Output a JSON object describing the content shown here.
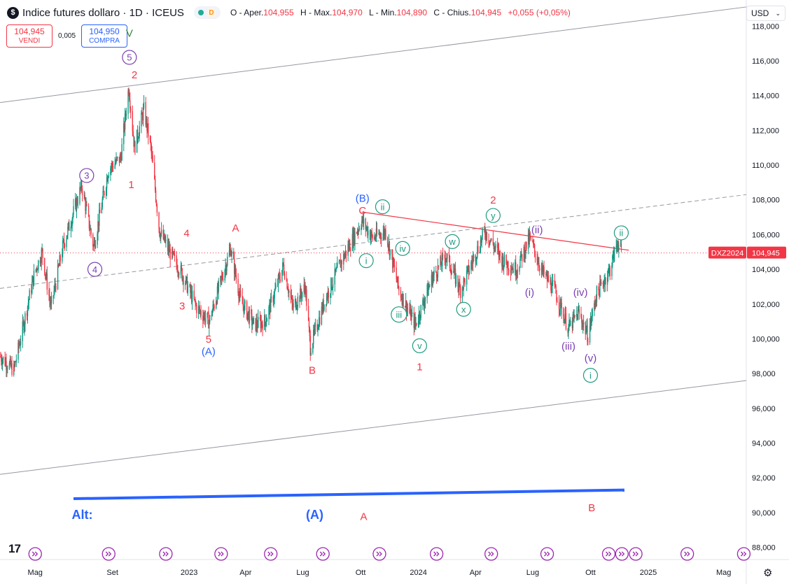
{
  "header": {
    "logo_glyph": "$",
    "title": "Indice futures dollaro · 1D · ICEUS",
    "badge_letter": "D",
    "ohlc": [
      {
        "label": "O - Aper.",
        "value": "104,955"
      },
      {
        "label": "H - Max.",
        "value": "104,970"
      },
      {
        "label": "L - Min.",
        "value": "104,890"
      },
      {
        "label": "C - Chius.",
        "value": "104,945"
      }
    ],
    "change": "+0,055 (+0,05%)"
  },
  "trade": {
    "sell_price": "104,945",
    "sell_label": "VENDI",
    "spread": "0,005",
    "buy_price": "104,950",
    "buy_label": "COMPRA"
  },
  "currency_select": {
    "value": "USD",
    "icon": "chevron-down-icon"
  },
  "colors": {
    "up": "#089981",
    "down": "#f23645",
    "blue": "#2962ff",
    "purple": "#7b3fb3",
    "teal": "#1e9b7f",
    "green": "#3b8a3e"
  },
  "chart_data": {
    "type": "candlestick",
    "symbol_tag": "DXZ2024",
    "last_price": "104,945",
    "y_ticks": [
      "118,000",
      "116,000",
      "114,000",
      "112,000",
      "110,000",
      "108,000",
      "106,000",
      "104,000",
      "102,000",
      "100,000",
      "98,000",
      "96,000",
      "94,000",
      "92,000",
      "90,000",
      "88,000"
    ],
    "y_range": [
      87.3,
      119.5
    ],
    "x_ticks": [
      "Mag",
      "Set",
      "2023",
      "Apr",
      "Lug",
      "Ott",
      "2024",
      "Apr",
      "Lug",
      "Ott",
      "2025",
      "Mag"
    ],
    "x_tick_dates": [
      "2022-05-01",
      "2022-09-01",
      "2023-01-01",
      "2023-04-01",
      "2023-07-01",
      "2023-10-01",
      "2024-01-01",
      "2024-04-01",
      "2024-07-01",
      "2024-10-01",
      "2025-01-01",
      "2025-05-01"
    ],
    "x_range": [
      "2022-03-06",
      "2025-06-06"
    ],
    "price_path": [
      [
        "2022-03-06",
        99.0
      ],
      [
        "2022-03-28",
        98.2
      ],
      [
        "2022-04-30",
        103.8
      ],
      [
        "2022-05-12",
        105.0
      ],
      [
        "2022-05-26",
        101.8
      ],
      [
        "2022-06-14",
        105.3
      ],
      [
        "2022-07-14",
        108.8
      ],
      [
        "2022-08-02",
        105.3
      ],
      [
        "2022-08-26",
        109.8
      ],
      [
        "2022-09-14",
        110.4
      ],
      [
        "2022-09-27",
        114.5
      ],
      [
        "2022-10-06",
        111.0
      ],
      [
        "2022-10-21",
        113.2
      ],
      [
        "2022-11-01",
        111.0
      ],
      [
        "2022-11-15",
        106.2
      ],
      [
        "2022-12-01",
        105.0
      ],
      [
        "2022-12-20",
        103.8
      ],
      [
        "2023-01-13",
        101.8
      ],
      [
        "2023-02-02",
        101.0
      ],
      [
        "2023-03-08",
        105.2
      ],
      [
        "2023-03-24",
        102.2
      ],
      [
        "2023-04-14",
        100.8
      ],
      [
        "2023-05-02",
        101.0
      ],
      [
        "2023-05-31",
        104.2
      ],
      [
        "2023-06-15",
        101.8
      ],
      [
        "2023-07-05",
        103.0
      ],
      [
        "2023-07-13",
        99.5
      ],
      [
        "2023-08-05",
        102.2
      ],
      [
        "2023-08-28",
        104.2
      ],
      [
        "2023-10-03",
        106.8
      ],
      [
        "2023-10-20",
        105.8
      ],
      [
        "2023-11-10",
        106.2
      ],
      [
        "2023-12-01",
        102.8
      ],
      [
        "2023-12-27",
        100.8
      ],
      [
        "2024-01-23",
        103.5
      ],
      [
        "2024-02-14",
        104.8
      ],
      [
        "2024-03-08",
        102.8
      ],
      [
        "2024-04-16",
        106.2
      ],
      [
        "2024-05-14",
        104.5
      ],
      [
        "2024-06-05",
        104.0
      ],
      [
        "2024-06-26",
        105.8
      ],
      [
        "2024-07-17",
        103.8
      ],
      [
        "2024-08-05",
        102.8
      ],
      [
        "2024-08-27",
        100.6
      ],
      [
        "2024-09-12",
        101.5
      ],
      [
        "2024-09-27",
        100.2
      ],
      [
        "2024-10-10",
        102.5
      ],
      [
        "2024-11-01",
        104.0
      ],
      [
        "2024-11-13",
        105.6
      ],
      [
        "2024-11-19",
        104.945
      ]
    ],
    "lines": [
      {
        "kind": "channel-upper",
        "from": [
          "2022-03-06",
          113.6
        ],
        "to": [
          "2025-06-06",
          119.1
        ],
        "color": "#9598a1"
      },
      {
        "kind": "channel-lower",
        "from": [
          "2022-03-06",
          92.2
        ],
        "to": [
          "2025-06-06",
          97.6
        ],
        "color": "#9598a1"
      },
      {
        "kind": "channel-mid-dashed",
        "from": [
          "2022-03-06",
          102.9
        ],
        "to": [
          "2025-06-06",
          108.3
        ],
        "color": "#9598a1"
      },
      {
        "kind": "resistance",
        "from": [
          "2023-10-03",
          107.3
        ],
        "to": [
          "2024-12-01",
          105.1
        ],
        "color": "#f23645"
      },
      {
        "kind": "alt-baseline",
        "from": [
          "2022-07-01",
          90.8
        ],
        "to": [
          "2024-11-24",
          91.3
        ],
        "color": "#2962ff"
      },
      {
        "kind": "last-price",
        "value": 104.945,
        "color": "#f23645"
      }
    ],
    "annotations": [
      {
        "text": "V",
        "date": "2022-09-28",
        "price": 117.6,
        "color": "green",
        "circled": false
      },
      {
        "text": "5",
        "date": "2022-09-28",
        "price": 116.2,
        "color": "purple",
        "circled": true
      },
      {
        "text": "2",
        "date": "2022-10-06",
        "price": 115.2,
        "color": "down",
        "circled": false
      },
      {
        "text": "3",
        "date": "2022-07-22",
        "price": 109.4,
        "color": "purple",
        "circled": true
      },
      {
        "text": "1",
        "date": "2022-10-01",
        "price": 108.9,
        "color": "down",
        "circled": false
      },
      {
        "text": "4",
        "date": "2022-08-04",
        "price": 104.0,
        "color": "purple",
        "circled": true
      },
      {
        "text": "4",
        "date": "2022-12-28",
        "price": 106.1,
        "color": "down",
        "circled": false
      },
      {
        "text": "A",
        "date": "2023-03-16",
        "price": 106.4,
        "color": "down",
        "circled": false
      },
      {
        "text": "3",
        "date": "2022-12-21",
        "price": 101.9,
        "color": "down",
        "circled": false
      },
      {
        "text": "5",
        "date": "2023-02-01",
        "price": 100.0,
        "color": "down",
        "circled": false
      },
      {
        "text": "(A)",
        "date": "2023-02-01",
        "price": 99.3,
        "color": "blue",
        "circled": false
      },
      {
        "text": "B",
        "date": "2023-07-16",
        "price": 98.2,
        "color": "down",
        "circled": false
      },
      {
        "text": "(B)",
        "date": "2023-10-04",
        "price": 108.1,
        "color": "blue",
        "circled": false
      },
      {
        "text": "C",
        "date": "2023-10-04",
        "price": 107.4,
        "color": "down",
        "circled": false
      },
      {
        "text": "ii",
        "date": "2023-11-05",
        "price": 107.6,
        "color": "teal",
        "circled": true
      },
      {
        "text": "i",
        "date": "2023-10-10",
        "price": 104.5,
        "color": "teal",
        "circled": true
      },
      {
        "text": "iv",
        "date": "2023-12-07",
        "price": 105.2,
        "color": "teal",
        "circled": true
      },
      {
        "text": "w",
        "date": "2024-02-24",
        "price": 105.6,
        "color": "teal",
        "circled": true
      },
      {
        "text": "iii",
        "date": "2023-12-01",
        "price": 101.4,
        "color": "teal",
        "circled": true
      },
      {
        "text": "x",
        "date": "2024-03-13",
        "price": 101.7,
        "color": "teal",
        "circled": true
      },
      {
        "text": "v",
        "date": "2024-01-03",
        "price": 99.6,
        "color": "teal",
        "circled": true
      },
      {
        "text": "1",
        "date": "2024-01-03",
        "price": 98.4,
        "color": "down",
        "circled": false
      },
      {
        "text": "2",
        "date": "2024-04-29",
        "price": 108.0,
        "color": "down",
        "circled": false
      },
      {
        "text": "y",
        "date": "2024-04-29",
        "price": 107.1,
        "color": "teal",
        "circled": true
      },
      {
        "text": "(ii)",
        "date": "2024-07-08",
        "price": 106.3,
        "color": "purple",
        "circled": false
      },
      {
        "text": "ii",
        "date": "2024-11-19",
        "price": 106.1,
        "color": "teal",
        "circled": true
      },
      {
        "text": "(i)",
        "date": "2024-06-26",
        "price": 102.7,
        "color": "purple",
        "circled": false
      },
      {
        "text": "(iv)",
        "date": "2024-09-15",
        "price": 102.7,
        "color": "purple",
        "circled": false
      },
      {
        "text": "(iii)",
        "date": "2024-08-27",
        "price": 99.6,
        "color": "purple",
        "circled": false
      },
      {
        "text": "(v)",
        "date": "2024-10-01",
        "price": 98.9,
        "color": "purple",
        "circled": false
      },
      {
        "text": "i",
        "date": "2024-10-01",
        "price": 97.9,
        "color": "teal",
        "circled": true
      },
      {
        "text": "Alt:",
        "date": "2022-07-15",
        "price": 89.9,
        "color": "blue",
        "circled": false,
        "bold": true
      },
      {
        "text": "(A)",
        "date": "2023-07-20",
        "price": 89.9,
        "color": "blue",
        "circled": false,
        "bold": true
      },
      {
        "text": "A",
        "date": "2023-10-06",
        "price": 89.8,
        "color": "down",
        "circled": false
      },
      {
        "text": "B",
        "date": "2024-10-03",
        "price": 90.3,
        "color": "down",
        "circled": false
      }
    ],
    "event_markers": [
      "2022-05-01",
      "2022-08-26",
      "2022-11-25",
      "2023-02-21",
      "2023-05-11",
      "2023-08-02",
      "2023-10-31",
      "2024-01-30",
      "2024-04-26",
      "2024-07-24",
      "2024-10-30",
      "2024-11-20",
      "2024-12-12",
      "2025-03-04",
      "2025-06-02"
    ]
  }
}
